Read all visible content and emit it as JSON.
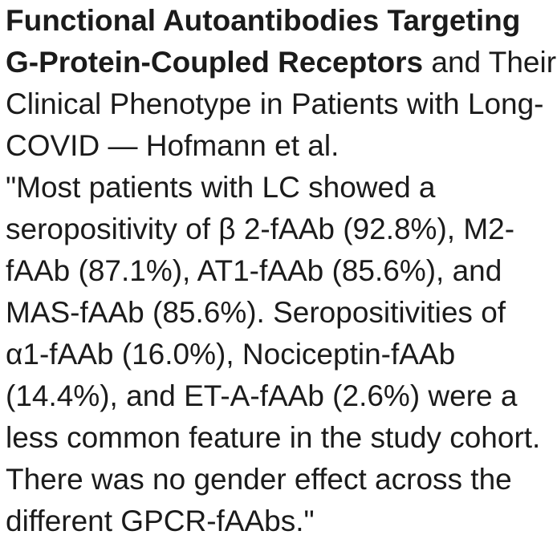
{
  "colors": {
    "background": "#ffffff",
    "text": "#1b1b1b"
  },
  "article": {
    "title_bold": "Functional Autoantibodies Targeting G-Protein-Coupled Receptors",
    "title_rest": " and Their Clinical Phenotype in Patients with Long-COVID — Hofmann et al.",
    "quote": "\"Most patients with LC showed a seropositivity of β 2-fAAb (92.8%), M2-fAAb (87.1%), AT1-fAAb (85.6%), and MAS-fAAb (85.6%). Seropositivities of α1-fAAb (16.0%), Nociceptin-fAAb (14.4%), and ET-A-fAAb (2.6%) were a less common feature in the study cohort. There was no gender effect across the different GPCR-fAAbs.\""
  }
}
